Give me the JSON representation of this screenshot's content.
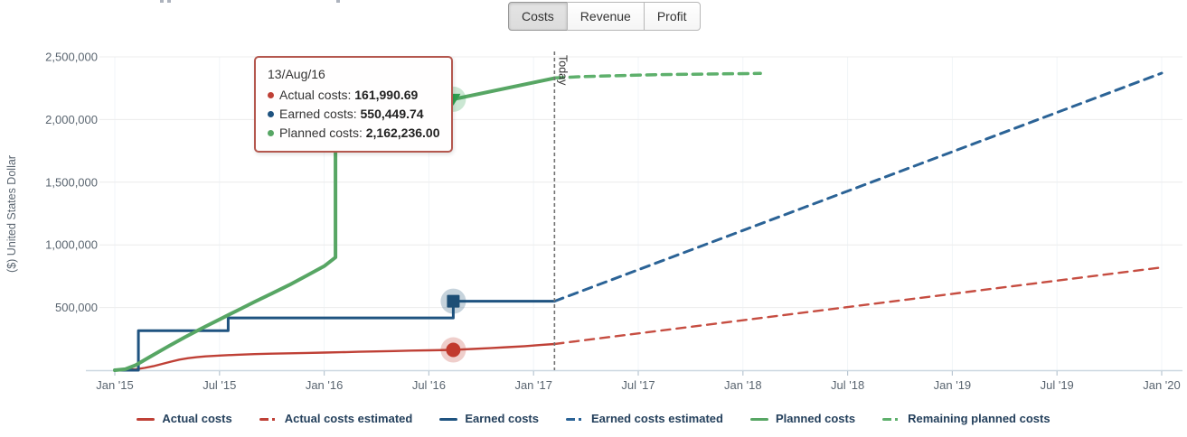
{
  "tabs": {
    "items": [
      {
        "label": "Costs",
        "active": true
      },
      {
        "label": "Revenue",
        "active": false
      },
      {
        "label": "Profit",
        "active": false
      }
    ]
  },
  "tooltip": {
    "title": "13/Aug/16",
    "rows": [
      {
        "label": "Actual costs",
        "value": "161,990.69",
        "color": "#bf4036"
      },
      {
        "label": "Earned costs",
        "value": "550,449.74",
        "color": "#1f5380"
      },
      {
        "label": "Planned costs",
        "value": "2,162,236.00",
        "color": "#57a664"
      }
    ]
  },
  "today": {
    "label": "Today",
    "month": 25.2
  },
  "legend": {
    "items": [
      {
        "label": "Actual costs",
        "color": "#bf4036",
        "dashed": false
      },
      {
        "label": "Actual costs estimated",
        "color": "#bf4036",
        "dashed": true
      },
      {
        "label": "Earned costs",
        "color": "#1f5380",
        "dashed": false
      },
      {
        "label": "Earned costs estimated",
        "color": "#2b6396",
        "dashed": true
      },
      {
        "label": "Planned costs",
        "color": "#57a664",
        "dashed": false
      },
      {
        "label": "Remaining planned costs",
        "color": "#5eb06c",
        "dashed": true
      }
    ]
  },
  "chart_data": {
    "type": "line",
    "title": "",
    "xlabel": "",
    "ylabel": "($) United States Dollar",
    "x_unit": "months since Jan 2015",
    "xlim": [
      0,
      60
    ],
    "ylim": [
      0,
      2500000
    ],
    "grid": true,
    "legend_position": "bottom",
    "x_ticks": [
      {
        "month": 0,
        "label": "Jan '15"
      },
      {
        "month": 6,
        "label": "Jul '15"
      },
      {
        "month": 12,
        "label": "Jan '16"
      },
      {
        "month": 18,
        "label": "Jul '16"
      },
      {
        "month": 24,
        "label": "Jan '17"
      },
      {
        "month": 30,
        "label": "Jul '17"
      },
      {
        "month": 36,
        "label": "Jan '18"
      },
      {
        "month": 42,
        "label": "Jul '18"
      },
      {
        "month": 48,
        "label": "Jan '19"
      },
      {
        "month": 54,
        "label": "Jul '19"
      },
      {
        "month": 60,
        "label": "Jan '20"
      }
    ],
    "y_ticks": [
      {
        "value": 500000,
        "label": "500,000"
      },
      {
        "value": 1000000,
        "label": "1,000,000"
      },
      {
        "value": 1500000,
        "label": "1,500,000"
      },
      {
        "value": 2000000,
        "label": "2,000,000"
      },
      {
        "value": 2500000,
        "label": "2,500,000"
      }
    ],
    "series": [
      {
        "name": "Actual costs",
        "color": "#bf4036",
        "dashed": false,
        "width": 2.4,
        "points": [
          [
            0,
            0
          ],
          [
            0.7,
            3000
          ],
          [
            1.2,
            8000
          ],
          [
            1.7,
            18000
          ],
          [
            2.2,
            32000
          ],
          [
            2.7,
            50000
          ],
          [
            3.2,
            68000
          ],
          [
            3.7,
            84000
          ],
          [
            4.2,
            96000
          ],
          [
            4.7,
            104000
          ],
          [
            5.2,
            110000
          ],
          [
            6,
            117000
          ],
          [
            7,
            123000
          ],
          [
            8,
            128000
          ],
          [
            9,
            131500
          ],
          [
            10,
            134500
          ],
          [
            11,
            137500
          ],
          [
            12,
            140500
          ],
          [
            13,
            143500
          ],
          [
            14,
            147000
          ],
          [
            15,
            150000
          ],
          [
            16,
            153000
          ],
          [
            17,
            156000
          ],
          [
            18,
            158500
          ],
          [
            19.4,
            161990.69
          ],
          [
            20.5,
            169000
          ],
          [
            21.5,
            176000
          ],
          [
            22.5,
            184000
          ],
          [
            23.5,
            192000
          ],
          [
            24.4,
            201000
          ],
          [
            25.2,
            209000
          ]
        ]
      },
      {
        "name": "Actual costs estimated",
        "color": "#c64d41",
        "dashed": true,
        "width": 2.4,
        "points": [
          [
            25.2,
            209000
          ],
          [
            60,
            820000
          ]
        ]
      },
      {
        "name": "Earned costs",
        "color": "#1f5380",
        "dashed": false,
        "width": 3,
        "points": [
          [
            0,
            0
          ],
          [
            1.35,
            0
          ],
          [
            1.35,
            315000
          ],
          [
            6.5,
            315000
          ],
          [
            6.5,
            417000
          ],
          [
            19.4,
            417000
          ],
          [
            19.4,
            550449.74
          ],
          [
            25.2,
            550449.74
          ]
        ]
      },
      {
        "name": "Earned costs estimated",
        "color": "#2b6396",
        "dashed": true,
        "width": 3,
        "points": [
          [
            25.2,
            550449.74
          ],
          [
            60,
            2370000
          ]
        ]
      },
      {
        "name": "Planned costs",
        "color": "#57a664",
        "dashed": false,
        "width": 4,
        "points": [
          [
            0,
            0
          ],
          [
            0.6,
            8000
          ],
          [
            1.2,
            40000
          ],
          [
            2,
            105000
          ],
          [
            3,
            185000
          ],
          [
            4,
            262000
          ],
          [
            5,
            335000
          ],
          [
            6,
            405000
          ],
          [
            7,
            475000
          ],
          [
            8,
            545000
          ],
          [
            9,
            612000
          ],
          [
            10,
            680000
          ],
          [
            11,
            755000
          ],
          [
            12,
            830000
          ],
          [
            12.65,
            900000
          ],
          [
            12.65,
            1945000
          ],
          [
            13.6,
            1990000
          ],
          [
            19.4,
            2162236
          ],
          [
            25.2,
            2330000
          ]
        ]
      },
      {
        "name": "Remaining planned costs",
        "color": "#5eb06c",
        "dashed": true,
        "width": 3.5,
        "points": [
          [
            25.2,
            2332000
          ],
          [
            27,
            2344000
          ],
          [
            31,
            2358000
          ],
          [
            37,
            2368000
          ]
        ]
      }
    ],
    "markers": [
      {
        "series": "Actual costs",
        "month": 19.4,
        "value": 161990.69,
        "shape": "circle",
        "color": "#c13a2e"
      },
      {
        "series": "Earned costs",
        "month": 19.4,
        "value": 550449.74,
        "shape": "square",
        "color": "#1d4e75"
      },
      {
        "series": "Planned costs",
        "month": 19.4,
        "value": 2162236,
        "shape": "triangle-down",
        "color": "#2f9e4f"
      }
    ],
    "today_line": {
      "month": 25.2,
      "label": "Today"
    },
    "styles": {
      "h_grid": "#ececec",
      "v_grid": "#f1f5f8",
      "axis_line": "#ccd8e1",
      "tick_mark": "#b9c6d2",
      "tick_text": "#5a6570",
      "today_color": "#737373"
    }
  }
}
